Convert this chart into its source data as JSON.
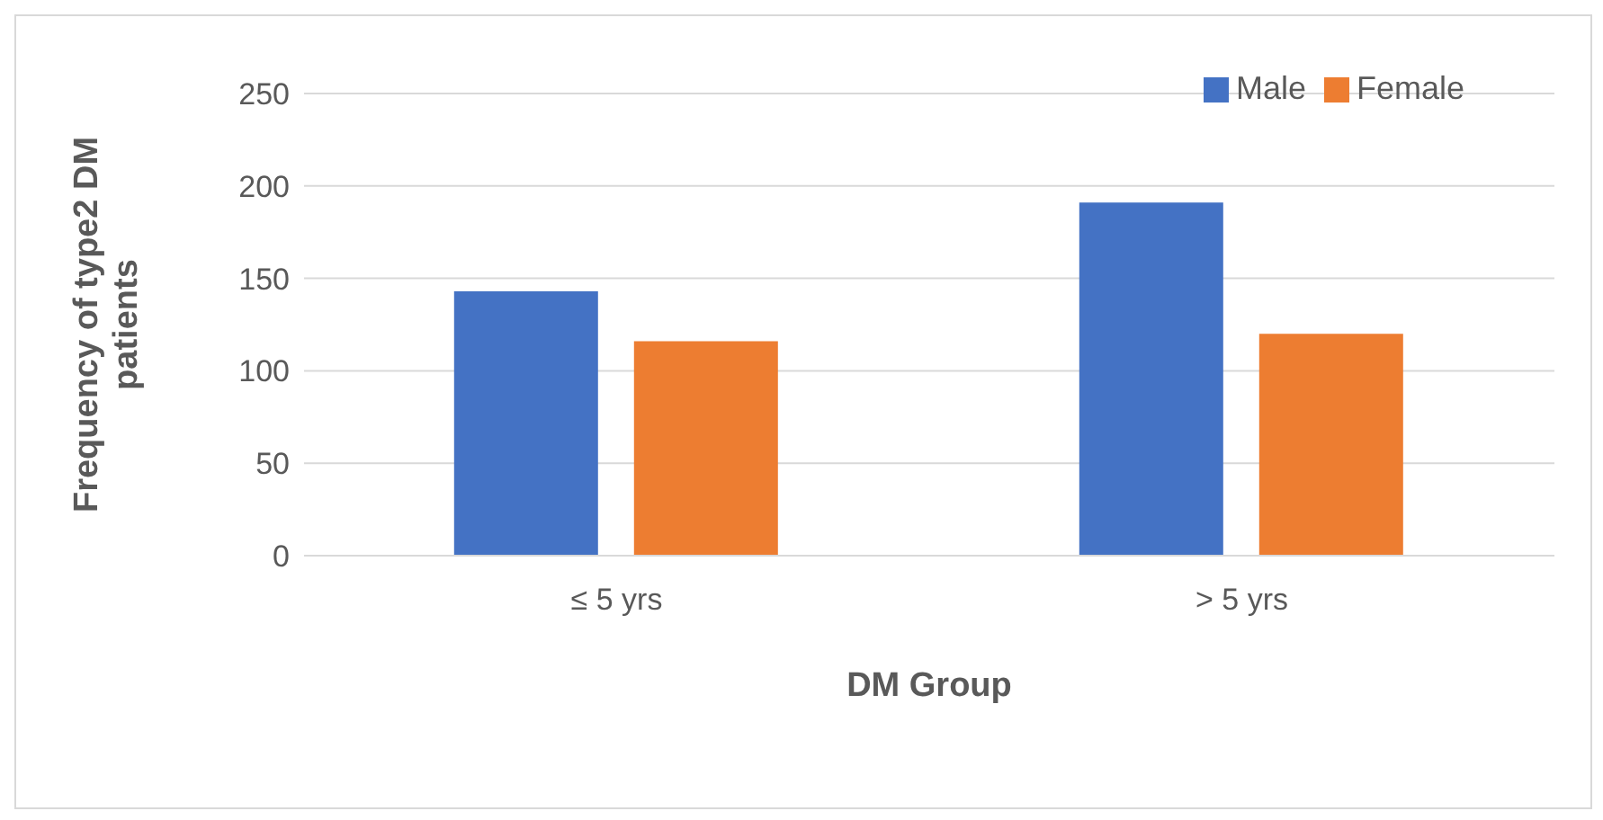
{
  "chart_data": {
    "type": "bar",
    "xlabel": "DM Group",
    "ylabel": "Frequency of type2 DM patients",
    "categories": [
      "≤ 5 yrs",
      "> 5 yrs"
    ],
    "series": [
      {
        "name": "Male",
        "color": "#4472c4",
        "values": [
          143,
          191
        ]
      },
      {
        "name": "Female",
        "color": "#ed7d31",
        "values": [
          116,
          120
        ]
      }
    ],
    "ylim": [
      0,
      250
    ],
    "yticks": [
      0,
      50,
      100,
      150,
      200,
      250
    ],
    "grid": "y",
    "legend": "top right"
  }
}
